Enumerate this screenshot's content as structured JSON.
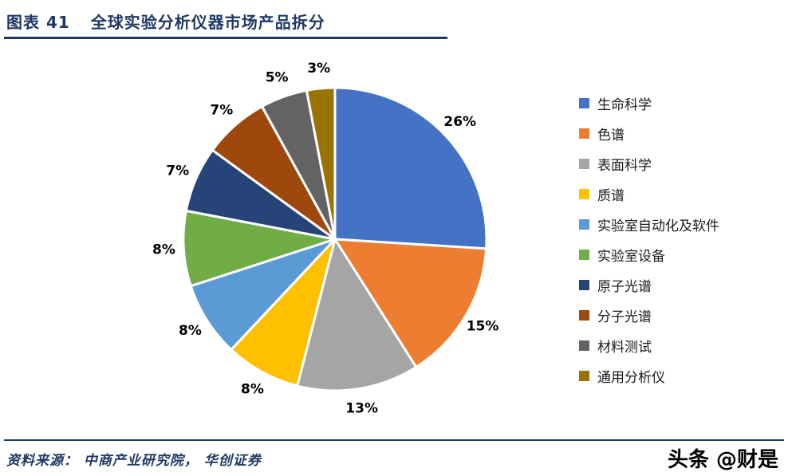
{
  "header": {
    "figure_label": "图表  41",
    "title": "全球实验分析仪器市场产品拆分"
  },
  "chart_data": {
    "type": "pie",
    "title": "全球实验分析仪器市场产品拆分",
    "start_angle_deg": 0,
    "direction": "clockwise",
    "legend_position": "right",
    "data_label_format": "percent",
    "slices": [
      {
        "label": "生命科学",
        "value": 26,
        "color": "#4472C4"
      },
      {
        "label": "色谱",
        "value": 15,
        "color": "#ED7D31"
      },
      {
        "label": "表面科学",
        "value": 13,
        "color": "#A5A5A5"
      },
      {
        "label": "质谱",
        "value": 8,
        "color": "#FFC000"
      },
      {
        "label": "实验室自动化及软件",
        "value": 8,
        "color": "#5B9BD5"
      },
      {
        "label": "实验室设备",
        "value": 8,
        "color": "#70AD47"
      },
      {
        "label": "原子光谱",
        "value": 7,
        "color": "#264478"
      },
      {
        "label": "分子光谱",
        "value": 7,
        "color": "#9E480E"
      },
      {
        "label": "材料测试",
        "value": 5,
        "color": "#636363"
      },
      {
        "label": "通用分析仪",
        "value": 3,
        "color": "#997300"
      }
    ]
  },
  "footer": {
    "source": "资料来源：  中商产业研究院，  华创证券",
    "watermark": "头条 @财是"
  },
  "colors": {
    "accent_navy": "#1f3864",
    "background": "#ffffff"
  }
}
